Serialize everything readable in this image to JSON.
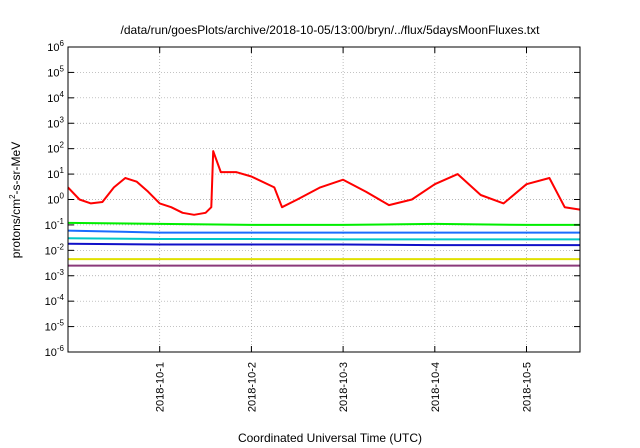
{
  "chart_data": {
    "type": "line",
    "title": "/data/run/goesPlots/archive/2018-10-05/13:00/bryn/../flux/5daysMoonFluxes.txt",
    "xlabel": "Coordinated Universal Time (UTC)",
    "ylabel": {
      "prefix": "protons/cm",
      "sup": "2",
      "suffix": "-s-sr-MeV"
    },
    "x_range": [
      "2018-09-30T00:00",
      "2018-10-05T14:00"
    ],
    "x_ticks": [
      "2018-10-1",
      "2018-10-2",
      "2018-10-3",
      "2018-10-4",
      "2018-10-5"
    ],
    "y_scale": "log",
    "y_range": [
      1e-06,
      1000000.0
    ],
    "y_ticks": [
      {
        "base": "10",
        "exp": "-6"
      },
      {
        "base": "10",
        "exp": "-5"
      },
      {
        "base": "10",
        "exp": "-4"
      },
      {
        "base": "10",
        "exp": "-3"
      },
      {
        "base": "10",
        "exp": "-2"
      },
      {
        "base": "10",
        "exp": "-1"
      },
      {
        "base": "10",
        "exp": "0"
      },
      {
        "base": "10",
        "exp": "1"
      },
      {
        "base": "10",
        "exp": "2"
      },
      {
        "base": "10",
        "exp": "3"
      },
      {
        "base": "10",
        "exp": "4"
      },
      {
        "base": "10",
        "exp": "5"
      },
      {
        "base": "10",
        "exp": "6"
      }
    ],
    "grid": true,
    "series": [
      {
        "color": "#ff0000",
        "x": [
          "2018-09-30T00:00",
          "2018-09-30T03:00",
          "2018-09-30T06:00",
          "2018-09-30T09:00",
          "2018-09-30T12:00",
          "2018-09-30T15:00",
          "2018-09-30T18:00",
          "2018-09-30T21:00",
          "2018-10-01T00:00",
          "2018-10-01T03:00",
          "2018-10-01T06:00",
          "2018-10-01T09:00",
          "2018-10-01T12:00",
          "2018-10-01T13:30",
          "2018-10-01T14:00",
          "2018-10-01T16:00",
          "2018-10-01T20:00",
          "2018-10-02T00:00",
          "2018-10-02T06:00",
          "2018-10-02T08:00",
          "2018-10-02T12:00",
          "2018-10-02T18:00",
          "2018-10-03T00:00",
          "2018-10-03T06:00",
          "2018-10-03T12:00",
          "2018-10-03T18:00",
          "2018-10-04T00:00",
          "2018-10-04T06:00",
          "2018-10-04T12:00",
          "2018-10-04T18:00",
          "2018-10-05T00:00",
          "2018-10-05T06:00",
          "2018-10-05T10:00",
          "2018-10-05T14:00"
        ],
        "y": [
          3,
          1,
          0.7,
          0.8,
          3,
          7,
          5,
          2,
          0.7,
          0.5,
          0.3,
          0.25,
          0.3,
          0.5,
          80,
          12,
          12,
          8,
          3,
          0.5,
          1,
          3,
          6,
          2,
          0.6,
          1,
          4,
          10,
          1.5,
          0.7,
          4,
          7,
          0.5,
          0.4
        ]
      },
      {
        "color": "#00ee00",
        "x": [
          "2018-09-30T00:00",
          "2018-10-01T00:00",
          "2018-10-02T00:00",
          "2018-10-03T00:00",
          "2018-10-04T00:00",
          "2018-10-05T00:00",
          "2018-10-05T14:00"
        ],
        "y": [
          0.12,
          0.11,
          0.1,
          0.1,
          0.11,
          0.1,
          0.1
        ]
      },
      {
        "color": "#1a6cff",
        "x": [
          "2018-09-30T00:00",
          "2018-10-01T00:00",
          "2018-10-02T00:00",
          "2018-10-03T00:00",
          "2018-10-04T00:00",
          "2018-10-05T00:00",
          "2018-10-05T14:00"
        ],
        "y": [
          0.06,
          0.05,
          0.05,
          0.05,
          0.05,
          0.05,
          0.05
        ]
      },
      {
        "color": "#00c8c8",
        "x": [
          "2018-09-30T00:00",
          "2018-10-01T00:00",
          "2018-10-02T00:00",
          "2018-10-03T00:00",
          "2018-10-04T00:00",
          "2018-10-05T00:00",
          "2018-10-05T14:00"
        ],
        "y": [
          0.03,
          0.028,
          0.028,
          0.027,
          0.027,
          0.027,
          0.027
        ]
      },
      {
        "color": "#1010c8",
        "x": [
          "2018-09-30T00:00",
          "2018-10-01T00:00",
          "2018-10-02T00:00",
          "2018-10-03T00:00",
          "2018-10-04T00:00",
          "2018-10-05T00:00",
          "2018-10-05T14:00"
        ],
        "y": [
          0.018,
          0.017,
          0.017,
          0.017,
          0.016,
          0.016,
          0.016
        ]
      },
      {
        "color": "#e0e000",
        "x": [
          "2018-09-30T00:00",
          "2018-10-01T00:00",
          "2018-10-02T00:00",
          "2018-10-03T00:00",
          "2018-10-04T00:00",
          "2018-10-05T00:00",
          "2018-10-05T14:00"
        ],
        "y": [
          0.0045,
          0.0045,
          0.0045,
          0.0045,
          0.0045,
          0.0045,
          0.0045
        ]
      },
      {
        "color": "#8b3a7a",
        "x": [
          "2018-09-30T00:00",
          "2018-10-01T00:00",
          "2018-10-02T00:00",
          "2018-10-03T00:00",
          "2018-10-04T00:00",
          "2018-10-05T00:00",
          "2018-10-05T14:00"
        ],
        "y": [
          0.0025,
          0.0025,
          0.0025,
          0.0025,
          0.0025,
          0.0025,
          0.0025
        ]
      }
    ]
  }
}
